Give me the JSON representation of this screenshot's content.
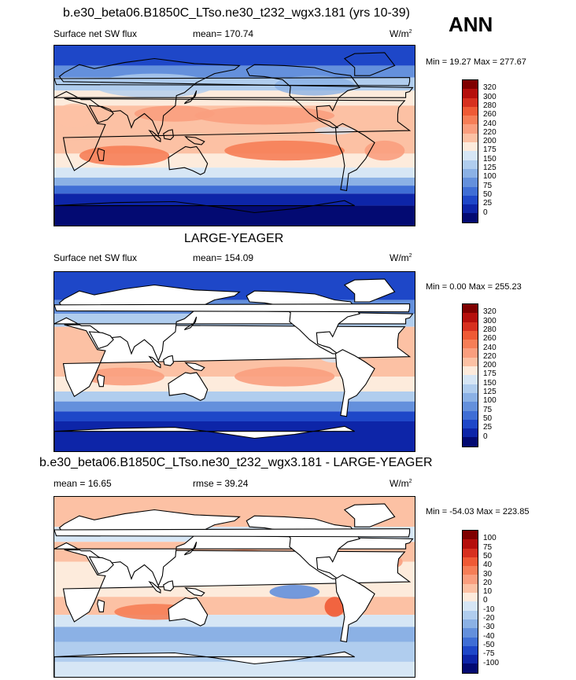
{
  "chart_data": [
    {
      "type": "heatmap",
      "title": "b.e30_beta06.B1850C_LTso.ne30_t232_wgx3.181 (yrs 10-39)",
      "left_label": "Surface net SW flux",
      "center_label": "mean= 170.74",
      "units": "W/m",
      "units_sup": "2",
      "season": "ANN",
      "minmax": "Min =  19.27 Max = 277.67",
      "colorbar_levels": [
        "320",
        "300",
        "280",
        "260",
        "240",
        "220",
        "200",
        "175",
        "150",
        "125",
        "100",
        "75",
        "50",
        "25",
        "0"
      ],
      "colorbar_colors": [
        "#7f0000",
        "#b50f0c",
        "#d7301f",
        "#ef5a35",
        "#f67e57",
        "#fa9e7e",
        "#fcc1a4",
        "#fdebdc",
        "#d6e6f5",
        "#b0cdee",
        "#8bb1e5",
        "#6490dc",
        "#3f6ed5",
        "#1e47c8",
        "#0d25a8",
        "#030a72"
      ],
      "land_masked": false
    },
    {
      "type": "heatmap",
      "title": "LARGE-YEAGER",
      "left_label": "Surface net SW flux",
      "center_label": "mean= 154.09",
      "units": "W/m",
      "units_sup": "2",
      "minmax": "Min =   0.00 Max = 255.23",
      "colorbar_levels": [
        "320",
        "300",
        "280",
        "260",
        "240",
        "220",
        "200",
        "175",
        "150",
        "125",
        "100",
        "75",
        "50",
        "25",
        "0"
      ],
      "colorbar_colors": [
        "#7f0000",
        "#b50f0c",
        "#d7301f",
        "#ef5a35",
        "#f67e57",
        "#fa9e7e",
        "#fcc1a4",
        "#fdebdc",
        "#d6e6f5",
        "#b0cdee",
        "#8bb1e5",
        "#6490dc",
        "#3f6ed5",
        "#1e47c8",
        "#0d25a8",
        "#030a72"
      ],
      "land_masked": true
    },
    {
      "type": "heatmap",
      "title": "b.e30_beta06.B1850C_LTso.ne30_t232_wgx3.181 - LARGE-YEAGER",
      "left_label": "mean =  16.65",
      "center_label": "rmse =  39.24",
      "units": "W/m",
      "units_sup": "2",
      "minmax": "Min = -54.03 Max = 223.85",
      "colorbar_levels": [
        "100",
        "75",
        "50",
        "40",
        "30",
        "20",
        "10",
        "0",
        "-10",
        "-20",
        "-30",
        "-40",
        "-50",
        "-75",
        "-100"
      ],
      "colorbar_colors": [
        "#7f0000",
        "#b50f0c",
        "#d7301f",
        "#ef5a35",
        "#f67e57",
        "#fa9e7e",
        "#fcc1a4",
        "#fdebdc",
        "#d6e6f5",
        "#b0cdee",
        "#8bb1e5",
        "#6490dc",
        "#3f6ed5",
        "#1e47c8",
        "#0d25a8",
        "#030a72"
      ],
      "land_masked": true
    }
  ]
}
